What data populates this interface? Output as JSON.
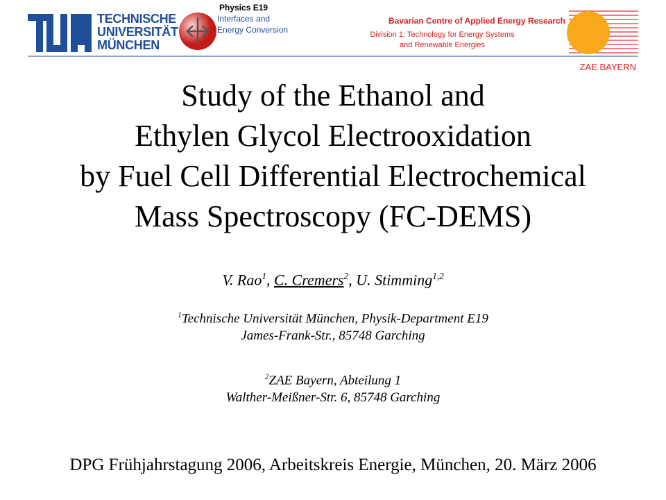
{
  "header": {
    "tum_name": [
      "TECHNISCHE",
      "UNIVERSITÄT",
      "MÜNCHEN"
    ],
    "chair": {
      "name": "Physics E19",
      "lines": [
        "Interfaces and",
        "Energy Conversion"
      ]
    },
    "zae": {
      "name": "Bavarian Centre of Applied Energy Research",
      "division": [
        "Division 1: Technology for Energy Systems",
        "and Renewable Energies"
      ],
      "short": "ZAE BAYERN"
    }
  },
  "title": [
    "Study of the Ethanol and",
    "Ethylen Glycol Electrooxidation",
    "by Fuel Cell Differential Electrochemical",
    "Mass Spectroscopy (FC-DEMS)"
  ],
  "authors": [
    {
      "name": "V. Rao",
      "affiliation": "1",
      "separator": ", "
    },
    {
      "name": "C. Cremers",
      "affiliation": "2",
      "separator": ", "
    },
    {
      "name": "U. Stimming",
      "affiliation": "1,2"
    }
  ],
  "affiliations": [
    {
      "mark": "1",
      "lines": [
        "Technische Universität München, Physik-Department E19",
        "James-Frank-Str., 85748 Garching"
      ]
    },
    {
      "mark": "2",
      "lines": [
        "ZAE Bayern, Abteilung 1",
        "Walther-Meißner-Str. 6, 85748 Garching"
      ]
    }
  ],
  "footer": "DPG Frühjahrstagung 2006, Arbeitskreis Energie, München, 20. März 2006"
}
